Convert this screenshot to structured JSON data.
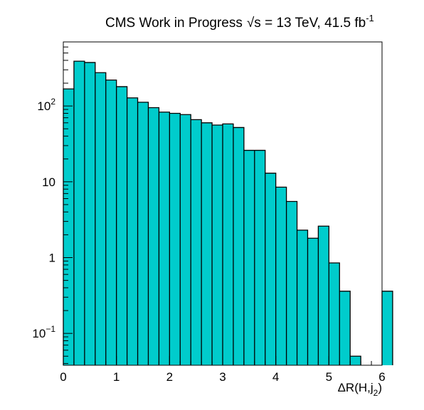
{
  "title": {
    "prefix": "CMS Work in Progress",
    "sqrt_symbol": "√",
    "energy_var": "s",
    "energy_value": " = 13 TeV, 41.5 fb",
    "lumi_exponent": "-1"
  },
  "chart_data": {
    "type": "bar",
    "subtype": "histogram",
    "fill_color": "#00cccc",
    "line_color": "#000000",
    "xlabel": {
      "main": "ΔR(H,j",
      "subscript": "2",
      "close": ")"
    },
    "xlim": [
      0,
      6
    ],
    "ylim": [
      0.038,
      700
    ],
    "y_scale": "log",
    "x_tick_labels": [
      "0",
      "1",
      "2",
      "3",
      "4",
      "5",
      "6"
    ],
    "y_tick_labels": [
      {
        "value": 0.1,
        "base": "10",
        "exp": "−1"
      },
      {
        "value": 1,
        "base": "1",
        "exp": ""
      },
      {
        "value": 10,
        "base": "10",
        "exp": ""
      },
      {
        "value": 100,
        "base": "10",
        "exp": "2"
      }
    ],
    "bin_width": 0.2,
    "bin_edges_start": 0,
    "values": [
      168,
      390,
      375,
      275,
      220,
      180,
      128,
      112,
      95,
      83,
      80,
      77,
      66,
      60,
      56,
      58,
      52,
      26,
      26,
      13,
      8.5,
      5.5,
      2.3,
      1.8,
      2.6,
      0.85,
      0.36,
      0.05,
      0,
      0,
      0.36,
      0
    ],
    "grid": false,
    "legend": "none"
  }
}
